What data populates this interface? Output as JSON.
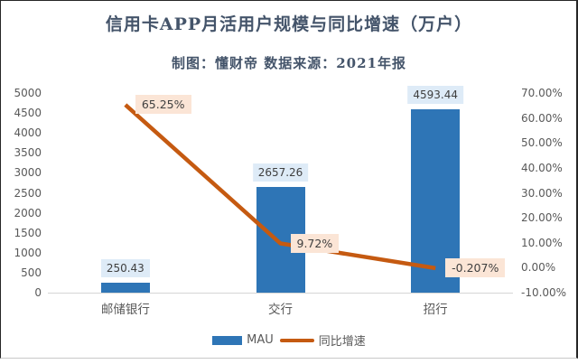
{
  "chart_data": {
    "type": "combo",
    "title": "信用卡APP月活用户规模与同比增速（万户）",
    "subtitle": "制图：懂财帝  数据来源：2021年报",
    "categories": [
      "邮储银行",
      "交行",
      "招行"
    ],
    "series": [
      {
        "name": "MAU",
        "type": "bar",
        "values": [
          250.43,
          2657.26,
          4593.44
        ],
        "labels": [
          "250.43",
          "2657.26",
          "4593.44"
        ],
        "color": "#2E75B6",
        "label_bg": "#DEEBF7"
      },
      {
        "name": "同比增速",
        "type": "line",
        "values": [
          65.25,
          9.72,
          -0.207
        ],
        "labels": [
          "65.25%",
          "9.72%",
          "-0.207%"
        ],
        "color": "#C55A11",
        "label_bg": "#FBE5D6"
      }
    ],
    "y_left": {
      "min": 0,
      "max": 5000,
      "step": 500,
      "ticks": [
        "5000",
        "4500",
        "4000",
        "3500",
        "3000",
        "2500",
        "2000",
        "1500",
        "1000",
        "500",
        "0"
      ]
    },
    "y_right": {
      "min": -10,
      "max": 70,
      "step": 10,
      "ticks": [
        "70.00%",
        "60.00%",
        "50.00%",
        "40.00%",
        "30.00%",
        "20.00%",
        "10.00%",
        "0.00%",
        "-10.00%"
      ]
    },
    "legend": {
      "position": "bottom",
      "items": [
        "MAU",
        "同比增速"
      ]
    },
    "grid": "off"
  }
}
